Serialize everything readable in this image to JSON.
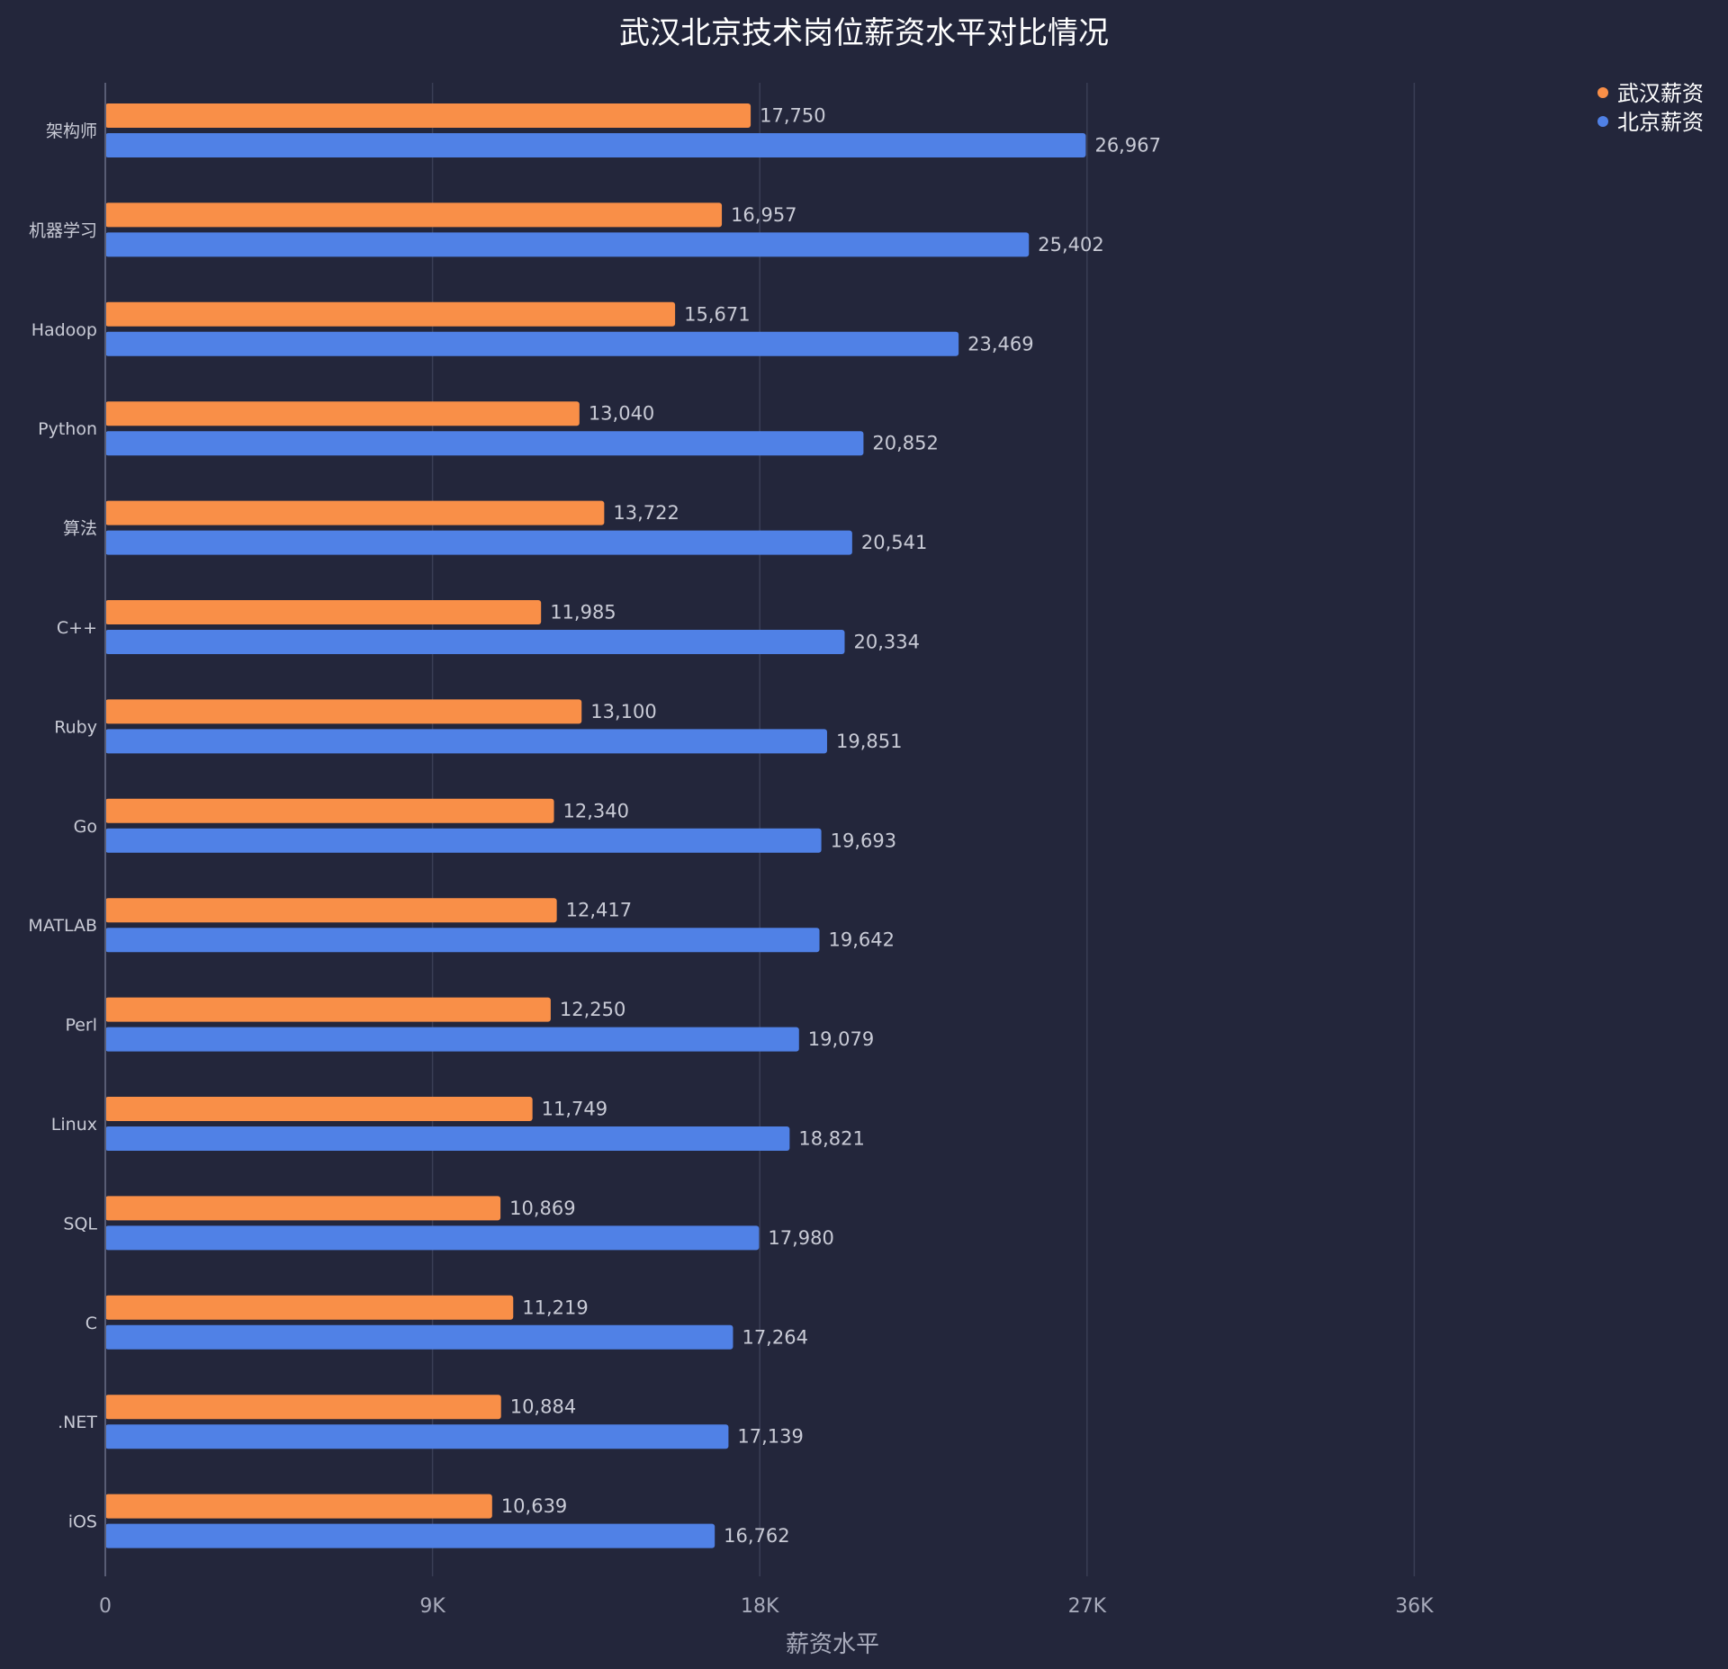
{
  "chart_data": {
    "type": "bar",
    "orientation": "horizontal",
    "title": "武汉北京技术岗位薪资水平对比情况",
    "xlabel": "薪资水平",
    "ylabel": "",
    "xlim": [
      0,
      40000
    ],
    "ticks": [
      {
        "value": 0,
        "label": "0"
      },
      {
        "value": 9000,
        "label": "9K"
      },
      {
        "value": 18000,
        "label": "18K"
      },
      {
        "value": 27000,
        "label": "27K"
      },
      {
        "value": 36000,
        "label": "36K"
      }
    ],
    "grid": true,
    "legend_position": "top-right",
    "categories": [
      "架构师",
      "机器学习",
      "Hadoop",
      "Python",
      "算法",
      "C++",
      "Ruby",
      "Go",
      "MATLAB",
      "Perl",
      "Linux",
      "SQL",
      "C",
      ".NET",
      "iOS"
    ],
    "series": [
      {
        "name": "武汉薪资",
        "color": "#f98f48",
        "values": [
          17750,
          16957,
          15671,
          13040,
          13722,
          11985,
          13100,
          12340,
          12417,
          12250,
          11749,
          10869,
          11219,
          10884,
          10639
        ],
        "labels": [
          "17,750",
          "16,957",
          "15,671",
          "13,040",
          "13,722",
          "11,985",
          "13,100",
          "12,340",
          "12,417",
          "12,250",
          "11,749",
          "10,869",
          "11,219",
          "10,884",
          "10,639"
        ]
      },
      {
        "name": "北京薪资",
        "color": "#5081e6",
        "values": [
          26967,
          25402,
          23469,
          20852,
          20541,
          20334,
          19851,
          19693,
          19642,
          19079,
          18821,
          17980,
          17264,
          17139,
          16762
        ],
        "labels": [
          "26,967",
          "25,402",
          "23,469",
          "20,852",
          "20,541",
          "20,334",
          "19,851",
          "19,693",
          "19,642",
          "19,079",
          "18,821",
          "17,980",
          "17,264",
          "17,139",
          "16,762"
        ]
      }
    ]
  }
}
